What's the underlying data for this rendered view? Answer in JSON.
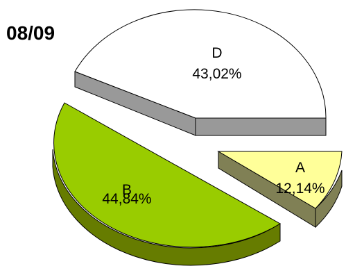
{
  "chart_data": {
    "type": "pie",
    "title": "08/09",
    "slices": [
      {
        "label": "A",
        "value": 12.14,
        "display": "12,14%",
        "color": "#ffff99",
        "side_color": "#808055"
      },
      {
        "label": "B",
        "value": 44.84,
        "display": "44,84%",
        "color": "#99cc00",
        "side_color": "#667c00"
      },
      {
        "label": "D",
        "value": 43.02,
        "display": "43,02%",
        "color": "#ffffff",
        "side_color": "#999999"
      }
    ]
  }
}
